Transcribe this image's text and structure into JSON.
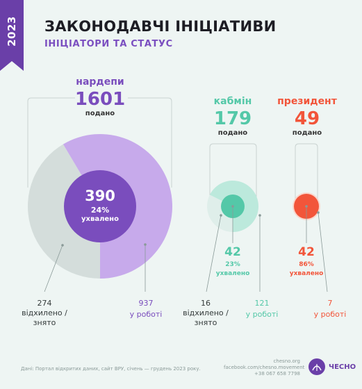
{
  "header": {
    "year": "2023",
    "title": "ЗАКОНОДАВЧІ ІНІЦІАТИВИ",
    "subtitle": "ІНІЦІАТОРИ ТА СТАТУС"
  },
  "colors": {
    "purple": "#7a4dbd",
    "purple_light": "#c7aaeb",
    "purple_dark": "#6a3fa8",
    "grey": "#d4dddb",
    "mint": "#54c8a8",
    "mint_light": "#bce9dc",
    "red": "#f2553a",
    "bracket": "#c9d3d1"
  },
  "chart_data": {
    "type": "pie",
    "groups": [
      {
        "name": "нардепи",
        "submitted": 1601,
        "submitted_label": "1601",
        "submitted_caption": "подано",
        "approved": 390,
        "approved_label": "390",
        "approved_pct": "24%",
        "approved_caption": "ухвалено",
        "rejected": 274,
        "rejected_label": "274",
        "rejected_caption_1": "відхилено /",
        "rejected_caption_2": "знято",
        "in_work": 937,
        "in_work_label": "937",
        "in_work_caption": "у роботі"
      },
      {
        "name": "кабмін",
        "submitted": 179,
        "submitted_label": "179",
        "submitted_caption": "подано",
        "approved": 42,
        "approved_label": "42",
        "approved_pct": "23%",
        "approved_caption": "ухвалено",
        "rejected": 16,
        "rejected_label": "16",
        "rejected_caption_1": "відхилено /",
        "rejected_caption_2": "знято",
        "in_work": 121,
        "in_work_label": "121",
        "in_work_caption": "у роботі"
      },
      {
        "name": "президент",
        "submitted": 49,
        "submitted_label": "49",
        "submitted_caption": "подано",
        "approved": 42,
        "approved_label": "42",
        "approved_pct": "86%",
        "approved_caption": "ухвалено",
        "in_work": 7,
        "in_work_label": "7",
        "in_work_caption": "у роботі"
      }
    ]
  },
  "footer": {
    "source": "Дані: Портал відкритих даних, сайт ВРУ, січень — грудень 2023 року.",
    "contact_1": "chesno.org",
    "contact_2": "facebook.com/chesno.movement",
    "contact_3": "+38 067 658 7798",
    "logo_text": "ЧЕСНО"
  }
}
